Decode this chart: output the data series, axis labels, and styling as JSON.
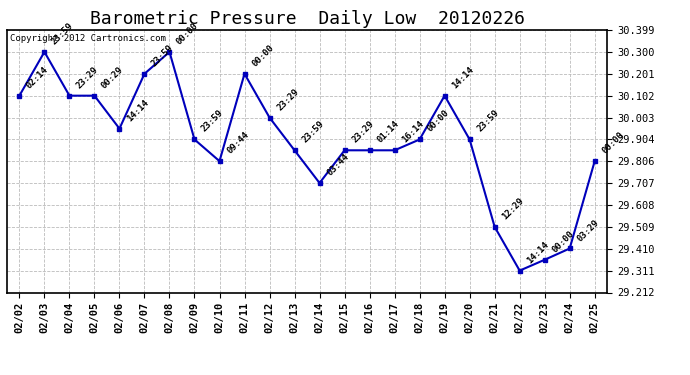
{
  "title": "Barometric Pressure  Daily Low  20120226",
  "copyright": "Copyright 2012 Cartronics.com",
  "x_labels": [
    "02/02",
    "02/03",
    "02/04",
    "02/05",
    "02/06",
    "02/07",
    "02/08",
    "02/09",
    "02/10",
    "02/11",
    "02/12",
    "02/13",
    "02/14",
    "02/15",
    "02/16",
    "02/17",
    "02/18",
    "02/19",
    "02/20",
    "02/21",
    "02/22",
    "02/23",
    "02/24",
    "02/25"
  ],
  "y_values": [
    30.102,
    30.3,
    30.102,
    30.102,
    29.953,
    30.201,
    30.3,
    29.904,
    29.806,
    30.201,
    30.003,
    29.855,
    29.707,
    29.855,
    29.855,
    29.855,
    29.904,
    30.102,
    29.904,
    29.509,
    29.311,
    29.36,
    29.411,
    29.806
  ],
  "point_labels": [
    "02:14",
    "23:59",
    "23:29",
    "00:29",
    "14:14",
    "23:59",
    "00:00",
    "23:59",
    "09:44",
    "00:00",
    "23:29",
    "23:59",
    "03:44",
    "23:29",
    "01:14",
    "16:14",
    "00:00",
    "14:14",
    "23:59",
    "12:29",
    "14:14",
    "00:00",
    "03:29",
    "00:00"
  ],
  "line_color": "#0000bb",
  "marker_color": "#0000bb",
  "bg_color": "#ffffff",
  "grid_color": "#bbbbbb",
  "title_fontsize": 13,
  "label_fontsize": 7.5,
  "point_label_fontsize": 6.5,
  "ylim_min": 29.212,
  "ylim_max": 30.399,
  "yticks": [
    29.212,
    29.311,
    29.41,
    29.509,
    29.608,
    29.707,
    29.806,
    29.904,
    30.003,
    30.102,
    30.201,
    30.3,
    30.399
  ]
}
